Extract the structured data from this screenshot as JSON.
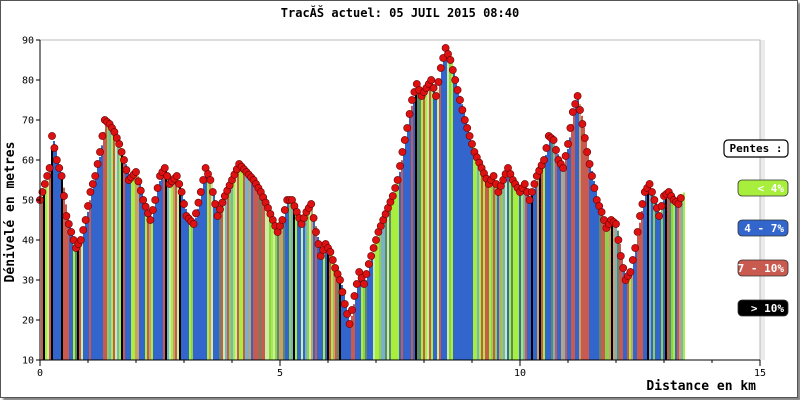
{
  "chart_data": {
    "type": "bar",
    "title": "TracĂŠ actuel: 05 JUIL 2015 08:40",
    "xlabel": "Distance en km",
    "ylabel": "Dénivelé en metres",
    "xlim": [
      0,
      15
    ],
    "ylim": [
      10,
      90
    ],
    "x_ticks": [
      "0",
      "5",
      "10",
      "15"
    ],
    "y_ticks": [
      "10",
      "20",
      "30",
      "40",
      "50",
      "60",
      "70",
      "80",
      "90"
    ],
    "grid": false,
    "legend_placement": "right",
    "legend": {
      "title": "Pentes :",
      "items": [
        {
          "label": "< 4%",
          "color": "#a8ee3c"
        },
        {
          "label": "4 - 7%",
          "color": "#3366cc"
        },
        {
          "label": "7 - 10%",
          "color": "#c85a50"
        },
        {
          "label": "> 10%",
          "color": "#000000"
        }
      ]
    },
    "marker_color": "#dd1111",
    "profile": [
      [
        0.0,
        50
      ],
      [
        0.1,
        54
      ],
      [
        0.2,
        58
      ],
      [
        0.25,
        66
      ],
      [
        0.35,
        60
      ],
      [
        0.45,
        56
      ],
      [
        0.55,
        46
      ],
      [
        0.65,
        42
      ],
      [
        0.75,
        38
      ],
      [
        0.85,
        40
      ],
      [
        0.95,
        45
      ],
      [
        1.05,
        52
      ],
      [
        1.15,
        56
      ],
      [
        1.25,
        62
      ],
      [
        1.35,
        70
      ],
      [
        1.45,
        69
      ],
      [
        1.55,
        67
      ],
      [
        1.65,
        64
      ],
      [
        1.75,
        60
      ],
      [
        1.85,
        55
      ],
      [
        2.0,
        57
      ],
      [
        2.15,
        50
      ],
      [
        2.3,
        45
      ],
      [
        2.4,
        50
      ],
      [
        2.5,
        56
      ],
      [
        2.6,
        58
      ],
      [
        2.7,
        54
      ],
      [
        2.85,
        56
      ],
      [
        2.95,
        52
      ],
      [
        3.05,
        46
      ],
      [
        3.2,
        44
      ],
      [
        3.35,
        52
      ],
      [
        3.45,
        58
      ],
      [
        3.55,
        55
      ],
      [
        3.7,
        46
      ],
      [
        3.85,
        51
      ],
      [
        4.0,
        55
      ],
      [
        4.15,
        59
      ],
      [
        4.3,
        57
      ],
      [
        4.45,
        55
      ],
      [
        4.6,
        52
      ],
      [
        4.75,
        48
      ],
      [
        4.85,
        45
      ],
      [
        4.95,
        42
      ],
      [
        5.05,
        45
      ],
      [
        5.15,
        50
      ],
      [
        5.25,
        50
      ],
      [
        5.35,
        47
      ],
      [
        5.45,
        44
      ],
      [
        5.55,
        47
      ],
      [
        5.65,
        49
      ],
      [
        5.75,
        42
      ],
      [
        5.85,
        36
      ],
      [
        5.95,
        39
      ],
      [
        6.05,
        37
      ],
      [
        6.15,
        33
      ],
      [
        6.25,
        30
      ],
      [
        6.35,
        24
      ],
      [
        6.45,
        19
      ],
      [
        6.55,
        26
      ],
      [
        6.65,
        32
      ],
      [
        6.75,
        29
      ],
      [
        6.85,
        34
      ],
      [
        6.95,
        38
      ],
      [
        7.05,
        42
      ],
      [
        7.15,
        45
      ],
      [
        7.25,
        48
      ],
      [
        7.35,
        51
      ],
      [
        7.45,
        55
      ],
      [
        7.55,
        62
      ],
      [
        7.65,
        68
      ],
      [
        7.75,
        75
      ],
      [
        7.85,
        79
      ],
      [
        7.95,
        76
      ],
      [
        8.05,
        78
      ],
      [
        8.15,
        80
      ],
      [
        8.25,
        76
      ],
      [
        8.35,
        83
      ],
      [
        8.45,
        88
      ],
      [
        8.55,
        85
      ],
      [
        8.65,
        80
      ],
      [
        8.75,
        75
      ],
      [
        8.85,
        70
      ],
      [
        8.95,
        66
      ],
      [
        9.05,
        62
      ],
      [
        9.2,
        58
      ],
      [
        9.35,
        54
      ],
      [
        9.45,
        56
      ],
      [
        9.55,
        52
      ],
      [
        9.65,
        55
      ],
      [
        9.75,
        58
      ],
      [
        9.85,
        55
      ],
      [
        10.0,
        52
      ],
      [
        10.1,
        54
      ],
      [
        10.2,
        50
      ],
      [
        10.35,
        56
      ],
      [
        10.5,
        60
      ],
      [
        10.6,
        66
      ],
      [
        10.7,
        65
      ],
      [
        10.8,
        60
      ],
      [
        10.9,
        58
      ],
      [
        11.0,
        64
      ],
      [
        11.1,
        72
      ],
      [
        11.2,
        76
      ],
      [
        11.3,
        69
      ],
      [
        11.4,
        62
      ],
      [
        11.5,
        56
      ],
      [
        11.6,
        50
      ],
      [
        11.7,
        47
      ],
      [
        11.8,
        43
      ],
      [
        11.9,
        45
      ],
      [
        12.0,
        44
      ],
      [
        12.1,
        36
      ],
      [
        12.2,
        30
      ],
      [
        12.3,
        32
      ],
      [
        12.4,
        38
      ],
      [
        12.5,
        46
      ],
      [
        12.6,
        52
      ],
      [
        12.7,
        54
      ],
      [
        12.8,
        50
      ],
      [
        12.9,
        46
      ],
      [
        13.0,
        51
      ],
      [
        13.1,
        52
      ],
      [
        13.2,
        50
      ],
      [
        13.3,
        49
      ],
      [
        13.4,
        52
      ]
    ]
  }
}
